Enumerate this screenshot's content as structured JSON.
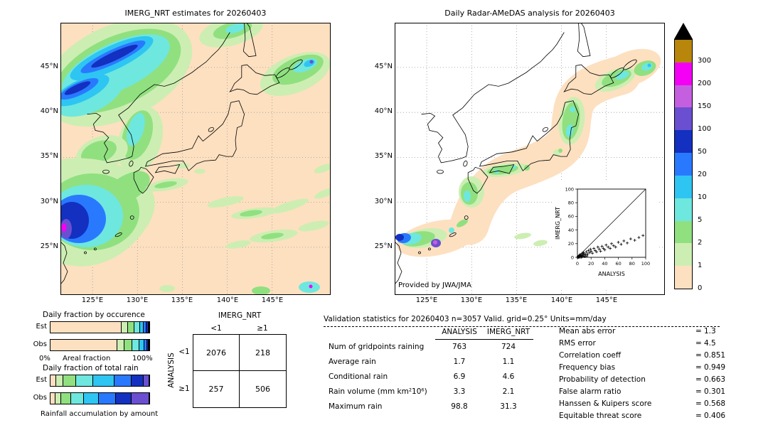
{
  "panels": {
    "left_map": {
      "title": "IMERG_NRT estimates for 20260403"
    },
    "right_map": {
      "title": "Daily Radar-AMeDAS analysis for 20260403",
      "credit": "Provided by JWA/JMA"
    }
  },
  "map_axes": {
    "lat_ticks": [
      "45°N",
      "40°N",
      "35°N",
      "30°N",
      "25°N"
    ],
    "lon_ticks": [
      "125°E",
      "130°E",
      "135°E",
      "140°E",
      "145°E"
    ]
  },
  "colorbar": {
    "labels": [
      "300",
      "200",
      "150",
      "100",
      "50",
      "20",
      "10",
      "5",
      "2",
      "1",
      "0"
    ],
    "colors_top_to_bottom": [
      "#b8860b",
      "#f400f4",
      "#c45fe0",
      "#6a4fd0",
      "#1330c0",
      "#2979ff",
      "#2ec5f2",
      "#6ee7df",
      "#90e080",
      "#cdeeb2",
      "#fde0c0"
    ],
    "triangle_color": "#000000"
  },
  "chart_data": [
    {
      "id": "occurrence_bars",
      "type": "bar-stacked-horizontal",
      "title": "Daily fraction by occurence",
      "axis_labels": {
        "left": "0%",
        "center": "Areal fraction",
        "right": "100%"
      },
      "rows": [
        {
          "label": "Est",
          "segments": [
            {
              "color": "#fde0c0",
              "pct": 72
            },
            {
              "color": "#cdeeb2",
              "pct": 6.5
            },
            {
              "color": "#90e080",
              "pct": 6.5
            },
            {
              "color": "#6ee7df",
              "pct": 5.5
            },
            {
              "color": "#2ec5f2",
              "pct": 4
            },
            {
              "color": "#2979ff",
              "pct": 3
            },
            {
              "color": "#1330c0",
              "pct": 1.5
            },
            {
              "color": "#6a4fd0",
              "pct": 1
            }
          ]
        },
        {
          "label": "Obs",
          "segments": [
            {
              "color": "#fde0c0",
              "pct": 68
            },
            {
              "color": "#cdeeb2",
              "pct": 7
            },
            {
              "color": "#90e080",
              "pct": 8
            },
            {
              "color": "#6ee7df",
              "pct": 7
            },
            {
              "color": "#2ec5f2",
              "pct": 5
            },
            {
              "color": "#2979ff",
              "pct": 3
            },
            {
              "color": "#1330c0",
              "pct": 1.5
            },
            {
              "color": "#6a4fd0",
              "pct": 0.5
            }
          ]
        }
      ]
    },
    {
      "id": "totalrain_bars",
      "type": "bar-stacked-horizontal",
      "title": "Daily fraction of total rain",
      "footer": "Rainfall accumulation by amount",
      "rows": [
        {
          "label": "Est",
          "segments": [
            {
              "color": "#fde0c0",
              "pct": 6
            },
            {
              "color": "#cdeeb2",
              "pct": 7
            },
            {
              "color": "#90e080",
              "pct": 13
            },
            {
              "color": "#6ee7df",
              "pct": 17
            },
            {
              "color": "#2ec5f2",
              "pct": 22
            },
            {
              "color": "#2979ff",
              "pct": 17
            },
            {
              "color": "#1330c0",
              "pct": 12
            },
            {
              "color": "#6a4fd0",
              "pct": 6
            }
          ]
        },
        {
          "label": "Obs",
          "segments": [
            {
              "color": "#fde0c0",
              "pct": 5
            },
            {
              "color": "#cdeeb2",
              "pct": 6
            },
            {
              "color": "#90e080",
              "pct": 10
            },
            {
              "color": "#6ee7df",
              "pct": 13
            },
            {
              "color": "#2ec5f2",
              "pct": 15
            },
            {
              "color": "#2979ff",
              "pct": 17
            },
            {
              "color": "#1330c0",
              "pct": 16
            },
            {
              "color": "#6a4fd0",
              "pct": 18
            }
          ]
        }
      ]
    },
    {
      "id": "contingency",
      "type": "table",
      "col_group": "IMERG_NRT",
      "row_group": "ANALYSIS",
      "col_labels": [
        "<1",
        "≥1"
      ],
      "row_labels": [
        "<1",
        "≥1"
      ],
      "cells": [
        [
          "2076",
          "218"
        ],
        [
          "257",
          "506"
        ]
      ]
    },
    {
      "id": "validation",
      "type": "table",
      "title": "Validation statistics for 20260403  n=3057 Valid. grid=0.25° Units=mm/day",
      "col_headers": [
        "ANALYSIS",
        "IMERG_NRT"
      ],
      "equals_sign": "=",
      "rows": [
        {
          "label": "Num of gridpoints raining",
          "analysis": "763",
          "imerg": "724"
        },
        {
          "label": "Average rain",
          "analysis": "1.7",
          "imerg": "1.1"
        },
        {
          "label": "Conditional rain",
          "analysis": "6.9",
          "imerg": "4.6"
        },
        {
          "label": "Rain volume (mm km²10⁶)",
          "analysis": "3.3",
          "imerg": "2.1"
        },
        {
          "label": "Maximum rain",
          "analysis": "98.8",
          "imerg": "31.3"
        }
      ],
      "metrics": [
        {
          "label": "Mean abs error",
          "value": "1.3"
        },
        {
          "label": "RMS error",
          "value": "4.5"
        },
        {
          "label": "Correlation coeff",
          "value": "0.851"
        },
        {
          "label": "Frequency bias",
          "value": "0.949"
        },
        {
          "label": "Probability of detection",
          "value": "0.663"
        },
        {
          "label": "False alarm ratio",
          "value": "0.301"
        },
        {
          "label": "Hanssen & Kuipers score",
          "value": "0.568"
        },
        {
          "label": "Equitable threat score",
          "value": "0.406"
        }
      ]
    },
    {
      "id": "inset_scatter",
      "type": "scatter",
      "xlabel": "ANALYSIS",
      "ylabel": "IMERG_NRT",
      "xlim": [
        0,
        100
      ],
      "ylim": [
        0,
        100
      ],
      "ticks": [
        0,
        20,
        40,
        60,
        80,
        100
      ],
      "diagonal": true,
      "points": [
        [
          0,
          0
        ],
        [
          1,
          1
        ],
        [
          1,
          0
        ],
        [
          2,
          2
        ],
        [
          2,
          0
        ],
        [
          3,
          1
        ],
        [
          3,
          3
        ],
        [
          4,
          0
        ],
        [
          4,
          4
        ],
        [
          5,
          2
        ],
        [
          6,
          0
        ],
        [
          6,
          3
        ],
        [
          7,
          1
        ],
        [
          7,
          6
        ],
        [
          8,
          4
        ],
        [
          9,
          2
        ],
        [
          9,
          7
        ],
        [
          10,
          5
        ],
        [
          11,
          1
        ],
        [
          12,
          4
        ],
        [
          13,
          8
        ],
        [
          14,
          2
        ],
        [
          15,
          5
        ],
        [
          16,
          10
        ],
        [
          18,
          7
        ],
        [
          19,
          12
        ],
        [
          20,
          9
        ],
        [
          22,
          6
        ],
        [
          24,
          13
        ],
        [
          26,
          10
        ],
        [
          28,
          8
        ],
        [
          30,
          15
        ],
        [
          32,
          12
        ],
        [
          34,
          9
        ],
        [
          36,
          16
        ],
        [
          38,
          13
        ],
        [
          40,
          11
        ],
        [
          42,
          18
        ],
        [
          45,
          15
        ],
        [
          48,
          13
        ],
        [
          50,
          20
        ],
        [
          53,
          17
        ],
        [
          56,
          15
        ],
        [
          60,
          22
        ],
        [
          64,
          19
        ],
        [
          68,
          24
        ],
        [
          73,
          21
        ],
        [
          78,
          27
        ],
        [
          84,
          25
        ],
        [
          90,
          29
        ],
        [
          96,
          32
        ]
      ]
    }
  ]
}
